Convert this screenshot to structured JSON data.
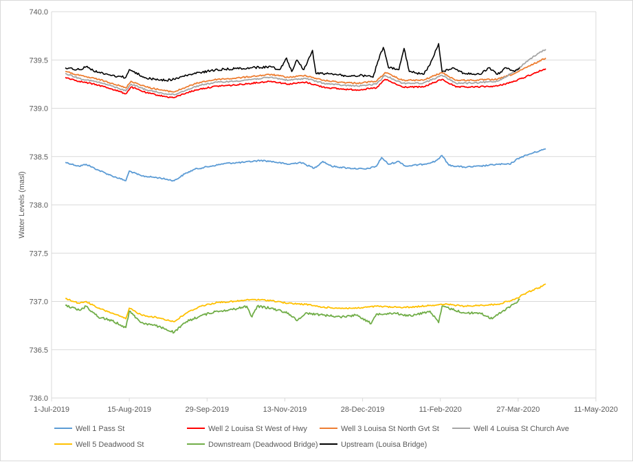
{
  "chart_data": {
    "type": "line",
    "title": "",
    "xlabel": "",
    "ylabel": "Water Levels (masl)",
    "xlim": [
      "2019-07-01",
      "2020-05-11"
    ],
    "ylim": [
      736.0,
      740.0
    ],
    "y_ticks": [
      "736.0",
      "736.5",
      "737.0",
      "737.5",
      "738.0",
      "738.5",
      "739.0",
      "739.5",
      "740.0"
    ],
    "x_ticks": [
      "1-Jul-2019",
      "15-Aug-2019",
      "29-Sep-2019",
      "13-Nov-2019",
      "28-Dec-2019",
      "11-Feb-2020",
      "27-Mar-2020",
      "11-May-2020"
    ],
    "grid": "horizontal",
    "legend_position": "bottom",
    "series": [
      {
        "name": "Well 1 Pass St",
        "color": "#5b9bd5",
        "points": [
          [
            "2019-07-09",
            738.44
          ],
          [
            "2019-07-17",
            738.4
          ],
          [
            "2019-07-21",
            738.42
          ],
          [
            "2019-07-28",
            738.36
          ],
          [
            "2019-08-05",
            738.3
          ],
          [
            "2019-08-13",
            738.25
          ],
          [
            "2019-08-15",
            738.35
          ],
          [
            "2019-08-22",
            738.3
          ],
          [
            "2019-09-01",
            738.28
          ],
          [
            "2019-09-10",
            738.25
          ],
          [
            "2019-09-16",
            738.32
          ],
          [
            "2019-09-22",
            738.37
          ],
          [
            "2019-10-01",
            738.4
          ],
          [
            "2019-10-10",
            738.43
          ],
          [
            "2019-10-20",
            738.44
          ],
          [
            "2019-10-30",
            738.46
          ],
          [
            "2019-11-05",
            738.45
          ],
          [
            "2019-11-15",
            738.42
          ],
          [
            "2019-11-22",
            738.44
          ],
          [
            "2019-11-30",
            738.38
          ],
          [
            "2019-12-05",
            738.45
          ],
          [
            "2019-12-10",
            738.4
          ],
          [
            "2019-12-20",
            738.38
          ],
          [
            "2019-12-30",
            738.37
          ],
          [
            "2020-01-05",
            738.4
          ],
          [
            "2020-01-08",
            738.49
          ],
          [
            "2020-01-12",
            738.42
          ],
          [
            "2020-01-18",
            738.45
          ],
          [
            "2020-01-22",
            738.4
          ],
          [
            "2020-02-01",
            738.42
          ],
          [
            "2020-02-08",
            738.45
          ],
          [
            "2020-02-12",
            738.51
          ],
          [
            "2020-02-16",
            738.41
          ],
          [
            "2020-02-25",
            738.39
          ],
          [
            "2020-03-05",
            738.4
          ],
          [
            "2020-03-15",
            738.42
          ],
          [
            "2020-03-22",
            738.42
          ],
          [
            "2020-03-28",
            738.49
          ],
          [
            "2020-04-05",
            738.54
          ],
          [
            "2020-04-12",
            738.58
          ]
        ]
      },
      {
        "name": "Well 2 Louisa St West of Hwy",
        "color": "#ff0000",
        "points": [
          [
            "2019-07-09",
            739.32
          ],
          [
            "2019-07-17",
            739.28
          ],
          [
            "2019-07-28",
            739.24
          ],
          [
            "2019-08-05",
            739.2
          ],
          [
            "2019-08-13",
            739.15
          ],
          [
            "2019-08-16",
            739.22
          ],
          [
            "2019-08-25",
            739.16
          ],
          [
            "2019-09-05",
            739.12
          ],
          [
            "2019-09-10",
            739.11
          ],
          [
            "2019-09-17",
            739.16
          ],
          [
            "2019-09-25",
            739.2
          ],
          [
            "2019-10-05",
            739.23
          ],
          [
            "2019-10-15",
            739.24
          ],
          [
            "2019-10-25",
            739.26
          ],
          [
            "2019-11-05",
            739.28
          ],
          [
            "2019-11-15",
            739.25
          ],
          [
            "2019-11-25",
            739.27
          ],
          [
            "2019-12-05",
            739.22
          ],
          [
            "2019-12-15",
            739.2
          ],
          [
            "2019-12-25",
            739.19
          ],
          [
            "2020-01-05",
            739.21
          ],
          [
            "2020-01-10",
            739.3
          ],
          [
            "2020-01-20",
            739.22
          ],
          [
            "2020-02-01",
            739.22
          ],
          [
            "2020-02-12",
            739.3
          ],
          [
            "2020-02-20",
            739.22
          ],
          [
            "2020-03-01",
            739.22
          ],
          [
            "2020-03-15",
            739.23
          ],
          [
            "2020-03-25",
            739.28
          ],
          [
            "2020-04-05",
            739.36
          ],
          [
            "2020-04-12",
            739.41
          ]
        ]
      },
      {
        "name": "Well 3 Louisa St North Gvt St",
        "color": "#ed7d31",
        "points": [
          [
            "2019-07-09",
            739.38
          ],
          [
            "2019-07-17",
            739.34
          ],
          [
            "2019-07-28",
            739.3
          ],
          [
            "2019-08-05",
            739.26
          ],
          [
            "2019-08-13",
            739.21
          ],
          [
            "2019-08-16",
            739.28
          ],
          [
            "2019-08-25",
            739.22
          ],
          [
            "2019-09-05",
            739.18
          ],
          [
            "2019-09-10",
            739.17
          ],
          [
            "2019-09-17",
            739.22
          ],
          [
            "2019-09-25",
            739.27
          ],
          [
            "2019-10-05",
            739.3
          ],
          [
            "2019-10-15",
            739.31
          ],
          [
            "2019-10-25",
            739.33
          ],
          [
            "2019-11-05",
            739.35
          ],
          [
            "2019-11-15",
            739.32
          ],
          [
            "2019-11-25",
            739.34
          ],
          [
            "2019-12-05",
            739.29
          ],
          [
            "2019-12-15",
            739.27
          ],
          [
            "2019-12-25",
            739.26
          ],
          [
            "2020-01-05",
            739.28
          ],
          [
            "2020-01-10",
            739.37
          ],
          [
            "2020-01-20",
            739.29
          ],
          [
            "2020-02-01",
            739.29
          ],
          [
            "2020-02-12",
            739.37
          ],
          [
            "2020-02-20",
            739.29
          ],
          [
            "2020-03-01",
            739.29
          ],
          [
            "2020-03-15",
            739.3
          ],
          [
            "2020-03-25",
            739.36
          ],
          [
            "2020-04-05",
            739.46
          ],
          [
            "2020-04-12",
            739.52
          ]
        ]
      },
      {
        "name": "Well 4 Louisa St Church Ave",
        "color": "#a5a5a5",
        "points": [
          [
            "2019-07-09",
            739.36
          ],
          [
            "2019-07-17",
            739.31
          ],
          [
            "2019-07-28",
            739.27
          ],
          [
            "2019-08-05",
            739.23
          ],
          [
            "2019-08-13",
            739.18
          ],
          [
            "2019-08-16",
            739.25
          ],
          [
            "2019-08-25",
            739.19
          ],
          [
            "2019-09-05",
            739.15
          ],
          [
            "2019-09-10",
            739.14
          ],
          [
            "2019-09-17",
            739.19
          ],
          [
            "2019-09-25",
            739.24
          ],
          [
            "2019-10-05",
            739.27
          ],
          [
            "2019-10-15",
            739.28
          ],
          [
            "2019-10-25",
            739.3
          ],
          [
            "2019-11-05",
            739.32
          ],
          [
            "2019-11-15",
            739.29
          ],
          [
            "2019-11-25",
            739.31
          ],
          [
            "2019-12-05",
            739.26
          ],
          [
            "2019-12-15",
            739.24
          ],
          [
            "2019-12-25",
            739.23
          ],
          [
            "2020-01-05",
            739.25
          ],
          [
            "2020-01-10",
            739.34
          ],
          [
            "2020-01-20",
            739.26
          ],
          [
            "2020-02-01",
            739.26
          ],
          [
            "2020-02-12",
            739.34
          ],
          [
            "2020-02-20",
            739.26
          ],
          [
            "2020-03-01",
            739.26
          ],
          [
            "2020-03-15",
            739.28
          ],
          [
            "2020-03-25",
            739.38
          ],
          [
            "2020-04-02",
            739.5
          ],
          [
            "2020-04-08",
            739.57
          ],
          [
            "2020-04-12",
            739.61
          ]
        ]
      },
      {
        "name": "Well 5 Deadwood St",
        "color": "#ffc000",
        "points": [
          [
            "2019-07-09",
            737.03
          ],
          [
            "2019-07-17",
            736.98
          ],
          [
            "2019-07-21",
            737.0
          ],
          [
            "2019-07-28",
            736.93
          ],
          [
            "2019-08-05",
            736.88
          ],
          [
            "2019-08-13",
            736.82
          ],
          [
            "2019-08-15",
            736.93
          ],
          [
            "2019-08-22",
            736.86
          ],
          [
            "2019-09-01",
            736.83
          ],
          [
            "2019-09-10",
            736.79
          ],
          [
            "2019-09-17",
            736.88
          ],
          [
            "2019-09-25",
            736.95
          ],
          [
            "2019-10-05",
            736.99
          ],
          [
            "2019-10-15",
            737.0
          ],
          [
            "2019-10-25",
            737.02
          ],
          [
            "2019-11-05",
            737.01
          ],
          [
            "2019-11-15",
            736.98
          ],
          [
            "2019-11-25",
            736.97
          ],
          [
            "2019-12-05",
            736.94
          ],
          [
            "2019-12-15",
            736.93
          ],
          [
            "2019-12-25",
            736.93
          ],
          [
            "2020-01-05",
            736.95
          ],
          [
            "2020-01-15",
            736.94
          ],
          [
            "2020-01-25",
            736.94
          ],
          [
            "2020-02-05",
            736.96
          ],
          [
            "2020-02-15",
            736.97
          ],
          [
            "2020-02-25",
            736.95
          ],
          [
            "2020-03-05",
            736.96
          ],
          [
            "2020-03-15",
            736.97
          ],
          [
            "2020-03-25",
            737.02
          ],
          [
            "2020-04-02",
            737.1
          ],
          [
            "2020-04-08",
            737.14
          ],
          [
            "2020-04-12",
            737.18
          ]
        ]
      },
      {
        "name": "Downstream (Deadwood Bridge)",
        "color": "#70ad47",
        "points": [
          [
            "2019-07-09",
            736.96
          ],
          [
            "2019-07-17",
            736.91
          ],
          [
            "2019-07-21",
            736.95
          ],
          [
            "2019-07-28",
            736.84
          ],
          [
            "2019-08-05",
            736.8
          ],
          [
            "2019-08-13",
            736.73
          ],
          [
            "2019-08-15",
            736.9
          ],
          [
            "2019-08-22",
            736.78
          ],
          [
            "2019-09-01",
            736.74
          ],
          [
            "2019-09-10",
            736.68
          ],
          [
            "2019-09-17",
            736.79
          ],
          [
            "2019-09-25",
            736.85
          ],
          [
            "2019-10-05",
            736.9
          ],
          [
            "2019-10-15",
            736.92
          ],
          [
            "2019-10-22",
            736.95
          ],
          [
            "2019-10-25",
            736.84
          ],
          [
            "2019-10-28",
            736.95
          ],
          [
            "2019-11-05",
            736.93
          ],
          [
            "2019-11-15",
            736.88
          ],
          [
            "2019-11-20",
            736.8
          ],
          [
            "2019-11-25",
            736.88
          ],
          [
            "2019-12-05",
            736.86
          ],
          [
            "2019-12-15",
            736.84
          ],
          [
            "2019-12-25",
            736.86
          ],
          [
            "2020-01-02",
            736.77
          ],
          [
            "2020-01-05",
            736.87
          ],
          [
            "2020-01-15",
            736.88
          ],
          [
            "2020-01-25",
            736.85
          ],
          [
            "2020-02-05",
            736.9
          ],
          [
            "2020-02-10",
            736.78
          ],
          [
            "2020-02-12",
            736.95
          ],
          [
            "2020-02-25",
            736.88
          ],
          [
            "2020-03-05",
            736.88
          ],
          [
            "2020-03-12",
            736.82
          ],
          [
            "2020-03-18",
            736.9
          ],
          [
            "2020-03-25",
            736.98
          ],
          [
            "2020-03-28",
            737.02
          ]
        ]
      },
      {
        "name": "Upstream (Louisa Bridge)",
        "color": "#000000",
        "points": [
          [
            "2019-07-09",
            739.42
          ],
          [
            "2019-07-17",
            739.4
          ],
          [
            "2019-07-21",
            739.43
          ],
          [
            "2019-07-28",
            739.37
          ],
          [
            "2019-08-05",
            739.34
          ],
          [
            "2019-08-13",
            739.32
          ],
          [
            "2019-08-15",
            739.4
          ],
          [
            "2019-08-25",
            739.31
          ],
          [
            "2019-09-05",
            739.29
          ],
          [
            "2019-09-10",
            739.3
          ],
          [
            "2019-09-17",
            739.34
          ],
          [
            "2019-09-25",
            739.37
          ],
          [
            "2019-10-05",
            739.4
          ],
          [
            "2019-10-15",
            739.41
          ],
          [
            "2019-10-25",
            739.42
          ],
          [
            "2019-11-05",
            739.43
          ],
          [
            "2019-11-10",
            739.4
          ],
          [
            "2019-11-14",
            739.52
          ],
          [
            "2019-11-17",
            739.38
          ],
          [
            "2019-11-20",
            739.5
          ],
          [
            "2019-11-24",
            739.4
          ],
          [
            "2019-11-29",
            739.6
          ],
          [
            "2019-12-01",
            739.36
          ],
          [
            "2019-12-10",
            739.36
          ],
          [
            "2019-12-20",
            739.33
          ],
          [
            "2019-12-28",
            739.34
          ],
          [
            "2020-01-03",
            739.32
          ],
          [
            "2020-01-07",
            739.55
          ],
          [
            "2020-01-09",
            739.63
          ],
          [
            "2020-01-12",
            739.42
          ],
          [
            "2020-01-18",
            739.4
          ],
          [
            "2020-01-21",
            739.62
          ],
          [
            "2020-01-24",
            739.38
          ],
          [
            "2020-02-01",
            739.35
          ],
          [
            "2020-02-05",
            739.45
          ],
          [
            "2020-02-10",
            739.67
          ],
          [
            "2020-02-12",
            739.38
          ],
          [
            "2020-02-18",
            739.42
          ],
          [
            "2020-02-25",
            739.36
          ],
          [
            "2020-03-05",
            739.35
          ],
          [
            "2020-03-10",
            739.42
          ],
          [
            "2020-03-15",
            739.35
          ],
          [
            "2020-03-20",
            739.42
          ],
          [
            "2020-03-25",
            739.38
          ],
          [
            "2020-03-28",
            739.42
          ]
        ]
      }
    ]
  }
}
